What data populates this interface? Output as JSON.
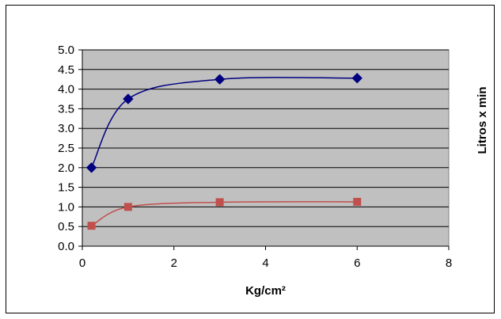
{
  "chart_data": {
    "type": "line",
    "title": "",
    "xlabel": "Kg/cm²",
    "ylabel": "Litros x min",
    "xlim": [
      0,
      8
    ],
    "ylim": [
      0,
      5
    ],
    "x_ticks": [
      "0",
      "2",
      "4",
      "6",
      "8"
    ],
    "y_ticks": [
      "0.0",
      "0.5",
      "1.0",
      "1.5",
      "2.0",
      "2.5",
      "3.0",
      "3.5",
      "4.0",
      "4.5",
      "5.0"
    ],
    "grid": true,
    "legend": "none",
    "plot_background": "#c0c0c0",
    "series": [
      {
        "color": "#000080",
        "marker": "diamond",
        "smooth": true,
        "x": [
          0.2,
          1,
          3,
          6
        ],
        "values": [
          2.0,
          3.75,
          4.25,
          4.28
        ]
      },
      {
        "color": "#c0504d",
        "marker": "square",
        "smooth": true,
        "x": [
          0.2,
          1,
          3,
          6
        ],
        "values": [
          0.52,
          1.0,
          1.12,
          1.13
        ]
      }
    ]
  }
}
